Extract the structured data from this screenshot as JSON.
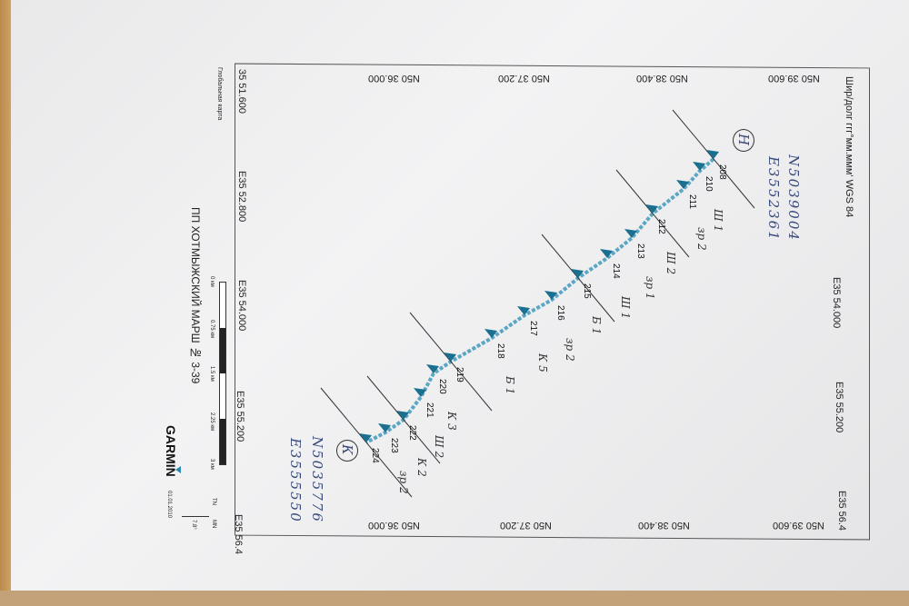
{
  "header": {
    "datum": "Шир/долг ггг°мм.ммм' WGS 84",
    "map_type": "Глобальная карта"
  },
  "title": "ПП ХОТМЫЖСКИЙ МАРШ № 3-39",
  "brand": "GARMIN",
  "date": "01.01.2010",
  "north": {
    "tn": "TN",
    "mn": "MN",
    "declination": "7.8°"
  },
  "grid": {
    "lat_labels": [
      "N50 36.000",
      "N50 37.200",
      "N50 38.400",
      "N50 39.600"
    ],
    "lon_labels_left": [
      "35 51.600",
      "E35 52.800",
      "E35 54.000",
      "E35 55.200",
      "E35 56.4"
    ],
    "lon_labels_right": [
      "E35 54.000",
      "E35 55.200",
      "E35 56.4"
    ]
  },
  "scale": {
    "labels": [
      "0 км",
      "0.75 км",
      "1.5 км",
      "2.25 км",
      "3 км"
    ]
  },
  "route_color": "#1b6f8f",
  "waypoints": [
    {
      "id": "208",
      "note": ""
    },
    {
      "id": "210",
      "note": "Ш 1"
    },
    {
      "id": "211",
      "note": "зр 2"
    },
    {
      "id": "212",
      "note": "Ш 2"
    },
    {
      "id": "213",
      "note": "зр 1"
    },
    {
      "id": "214",
      "note": "Ш 1"
    },
    {
      "id": "215",
      "note": "Б 1"
    },
    {
      "id": "216",
      "note": "зр 2"
    },
    {
      "id": "217",
      "note": "К 5"
    },
    {
      "id": "218",
      "note": "Б 1"
    },
    {
      "id": "219",
      "note": ""
    },
    {
      "id": "220",
      "note": "К 3"
    },
    {
      "id": "221",
      "note": "Ш 2"
    },
    {
      "id": "222",
      "note": "К 2"
    },
    {
      "id": "223",
      "note": "зр 2"
    },
    {
      "id": "224",
      "note": ""
    }
  ],
  "handwritten": {
    "start_mark": "Н",
    "start_lat": "N5039004",
    "start_lon": "E3552361",
    "end_mark": "К",
    "end_lat": "N5035776",
    "end_lon": "E3555550"
  }
}
